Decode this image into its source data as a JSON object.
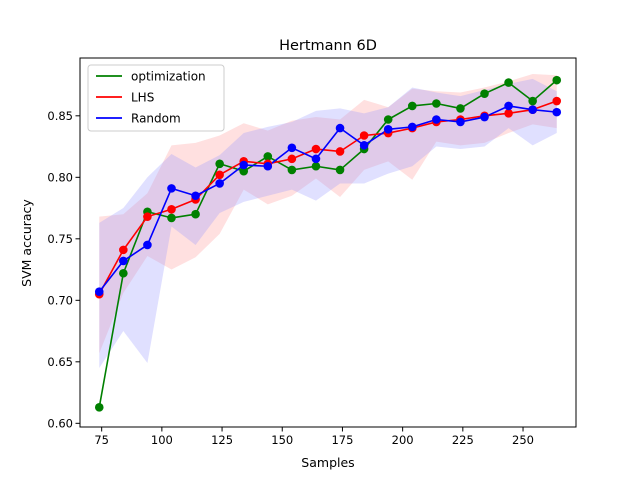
{
  "chart_data": {
    "type": "line",
    "title": "Hertmann 6D",
    "xlabel": "Samples",
    "ylabel": "SVM accuracy",
    "xlim": [
      66,
      272
    ],
    "ylim": [
      0.597,
      0.897
    ],
    "xticks": [
      75,
      100,
      125,
      150,
      175,
      200,
      225,
      250
    ],
    "yticks": [
      0.6,
      0.65,
      0.7,
      0.75,
      0.8,
      0.85
    ],
    "grid": false,
    "legend_position": "top-left",
    "x": [
      74,
      84,
      94,
      104,
      114,
      124,
      134,
      144,
      154,
      164,
      174,
      184,
      194,
      204,
      214,
      224,
      234,
      244,
      254,
      264
    ],
    "series": [
      {
        "name": "optimization",
        "color": "#008000",
        "values": [
          0.613,
          0.722,
          0.772,
          0.767,
          0.77,
          0.811,
          0.805,
          0.817,
          0.806,
          0.809,
          0.806,
          0.823,
          0.847,
          0.858,
          0.86,
          0.856,
          0.868,
          0.877,
          0.862,
          0.879
        ]
      },
      {
        "name": "LHS",
        "color": "#ff0000",
        "band_color": "#ff9999",
        "values": [
          0.705,
          0.741,
          0.768,
          0.774,
          0.782,
          0.802,
          0.813,
          0.811,
          0.815,
          0.823,
          0.821,
          0.834,
          0.836,
          0.84,
          0.845,
          0.847,
          0.85,
          0.852,
          0.855,
          0.862
        ],
        "lower": [
          0.657,
          0.706,
          0.736,
          0.725,
          0.735,
          0.754,
          0.79,
          0.778,
          0.785,
          0.799,
          0.784,
          0.806,
          0.813,
          0.798,
          0.829,
          0.826,
          0.828,
          0.836,
          0.843,
          0.84
        ],
        "upper": [
          0.768,
          0.77,
          0.787,
          0.826,
          0.828,
          0.834,
          0.844,
          0.838,
          0.846,
          0.849,
          0.847,
          0.863,
          0.857,
          0.872,
          0.87,
          0.869,
          0.873,
          0.878,
          0.884,
          0.883
        ]
      },
      {
        "name": "Random",
        "color": "#0000ff",
        "band_color": "#9999ff",
        "values": [
          0.707,
          0.732,
          0.745,
          0.791,
          0.785,
          0.795,
          0.81,
          0.809,
          0.824,
          0.815,
          0.84,
          0.826,
          0.839,
          0.841,
          0.847,
          0.845,
          0.849,
          0.858,
          0.855,
          0.853
        ],
        "lower": [
          0.645,
          0.675,
          0.649,
          0.76,
          0.745,
          0.771,
          0.78,
          0.785,
          0.79,
          0.781,
          0.795,
          0.795,
          0.803,
          0.809,
          0.825,
          0.823,
          0.825,
          0.84,
          0.826,
          0.836
        ],
        "upper": [
          0.763,
          0.775,
          0.8,
          0.819,
          0.808,
          0.818,
          0.836,
          0.841,
          0.845,
          0.854,
          0.856,
          0.852,
          0.857,
          0.873,
          0.869,
          0.866,
          0.871,
          0.876,
          0.88,
          0.87
        ]
      }
    ]
  }
}
